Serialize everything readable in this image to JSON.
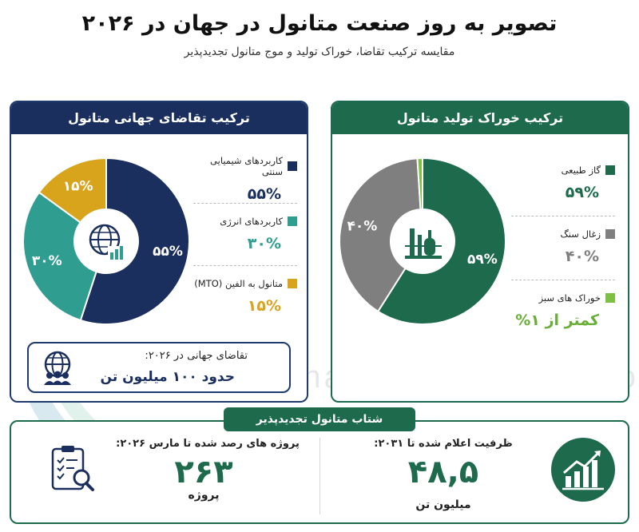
{
  "header": {
    "title": "تصویر به روز صنعت متانول در جهان در ۲۰۲۶",
    "subtitle": "مقایسه ترکیب تقاضا، خوراک تولید و موج متانول تجدیدپذیر"
  },
  "watermark": {
    "text": "Iran Methanol Industries Co"
  },
  "colors": {
    "navy": "#1b2f5e",
    "teal": "#2f9e90",
    "gold": "#d8a41c",
    "green": "#1e6a4d",
    "gray": "#7f7f7f",
    "lightgreen": "#7cc142"
  },
  "demand_panel": {
    "title": "ترکیب تقاضای جهانی متانول",
    "legend": [
      {
        "label": "کاربردهای شیمیایی سنتی",
        "value": "۵۵%",
        "color": "#1b2f5e"
      },
      {
        "label": "کاربردهای انرژی",
        "value": "۳۰%",
        "color": "#2f9e90"
      },
      {
        "label": "متانول به الفین (MTO)",
        "value": "۱۵%",
        "color": "#d8a41c"
      }
    ],
    "icon": "globe-chart-icon",
    "box": {
      "line1": "تقاضای جهانی در ۲۰۲۶:",
      "line2": "حدود ۱۰۰ میلیون تن",
      "icon": "globe-people-icon"
    }
  },
  "feed_panel": {
    "title": "ترکیب خوراک تولید متانول",
    "legend": [
      {
        "label": "گاز طبیعی",
        "value": "۵۹%",
        "color": "#1e6a4d"
      },
      {
        "label": "زغال سنگ",
        "value": "۴۰%",
        "color": "#7f7f7f"
      },
      {
        "label": "خوراک های سبز",
        "value": "کمتر از ۱%",
        "color": "#7cc142"
      }
    ],
    "icon": "factory-icon"
  },
  "renewable": {
    "tag": "شتاب متانول تجدیدپذیر",
    "capacity": {
      "title": "ظرفیت اعلام شده تا ۲۰۳۱:",
      "value": "۴۸,۵",
      "unit": "میلیون تن",
      "icon": "growth-chart-icon"
    },
    "projects": {
      "title": "پروژه های رصد شده تا مارس ۲۰۲۶:",
      "value": "۲۶۳",
      "unit": "پروژه",
      "icon": "clipboard-search-icon"
    }
  },
  "chart_data": [
    {
      "type": "pie",
      "title": "ترکیب تقاضای جهانی متانول",
      "categories": [
        "کاربردهای شیمیایی سنتی",
        "کاربردهای انرژی",
        "متانول به الفین (MTO)"
      ],
      "values": [
        55,
        30,
        15
      ],
      "labels": [
        "۵۵%",
        "۳۰%",
        "۱۵%"
      ],
      "colors": [
        "#1b2f5e",
        "#2f9e90",
        "#d8a41c"
      ],
      "legend": "right"
    },
    {
      "type": "pie",
      "title": "ترکیب خوراک تولید متانول",
      "categories": [
        "گاز طبیعی",
        "زغال سنگ",
        "خوراک های سبز"
      ],
      "values": [
        59,
        40,
        1
      ],
      "labels": [
        "۵۹%",
        "۴۰%",
        ""
      ],
      "colors": [
        "#1e6a4d",
        "#7f7f7f",
        "#7cc142"
      ],
      "legend": "right"
    }
  ]
}
